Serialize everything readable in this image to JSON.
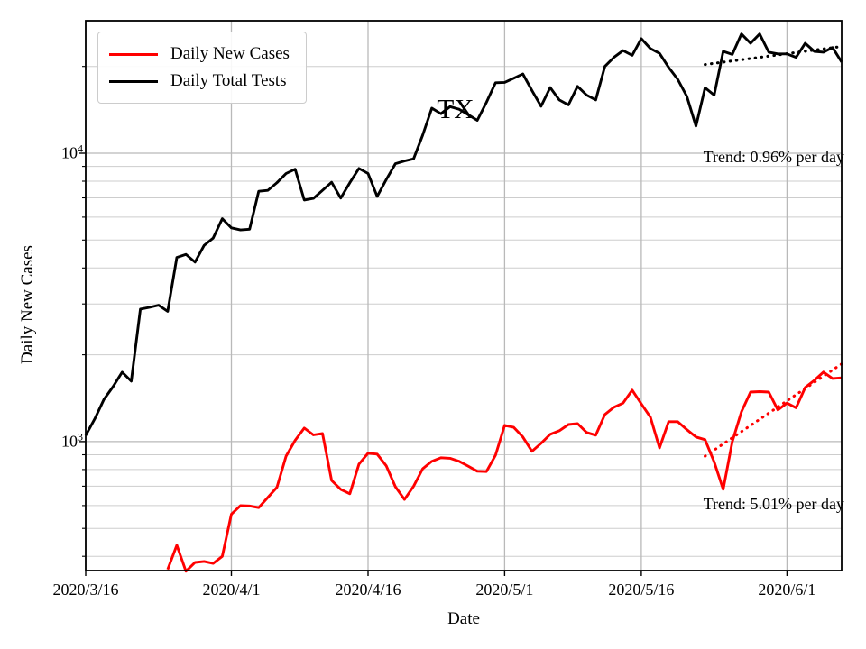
{
  "figure": {
    "title": "TX",
    "xlabel": "Date",
    "ylabel": "Daily New Cases"
  },
  "legend": {
    "items": [
      {
        "label": "Daily New Cases",
        "color": "#ff0000"
      },
      {
        "label": "Daily Total Tests",
        "color": "#000000"
      }
    ]
  },
  "chart_data": {
    "type": "line",
    "title": "TX",
    "xlabel": "Date",
    "ylabel": "Daily New Cases",
    "yscale": "log",
    "ylim": [
      357,
      28800
    ],
    "grid": "both",
    "legend_position": "upper left",
    "x_ticks": [
      {
        "label": "2020/3/16",
        "day": 0
      },
      {
        "label": "2020/4/1",
        "day": 16
      },
      {
        "label": "2020/4/16",
        "day": 31
      },
      {
        "label": "2020/5/1",
        "day": 46
      },
      {
        "label": "2020/5/16",
        "day": 61
      },
      {
        "label": "2020/6/1",
        "day": 77
      }
    ],
    "y_ticks": [
      {
        "base": "10",
        "exp": "3",
        "value": 1000
      },
      {
        "base": "10",
        "exp": "4",
        "value": 10000
      }
    ],
    "x_dates": [
      "2020/3/16",
      "2020/3/17",
      "2020/3/18",
      "2020/3/19",
      "2020/3/20",
      "2020/3/21",
      "2020/3/22",
      "2020/3/23",
      "2020/3/24",
      "2020/3/25",
      "2020/3/26",
      "2020/3/27",
      "2020/3/28",
      "2020/3/29",
      "2020/3/30",
      "2020/3/31",
      "2020/4/1",
      "2020/4/2",
      "2020/4/3",
      "2020/4/4",
      "2020/4/5",
      "2020/4/6",
      "2020/4/7",
      "2020/4/8",
      "2020/4/9",
      "2020/4/10",
      "2020/4/11",
      "2020/4/12",
      "2020/4/13",
      "2020/4/14",
      "2020/4/15",
      "2020/4/16",
      "2020/4/17",
      "2020/4/18",
      "2020/4/19",
      "2020/4/20",
      "2020/4/21",
      "2020/4/22",
      "2020/4/23",
      "2020/4/24",
      "2020/4/25",
      "2020/4/26",
      "2020/4/27",
      "2020/4/28",
      "2020/4/29",
      "2020/4/30",
      "2020/5/1",
      "2020/5/2",
      "2020/5/3",
      "2020/5/4",
      "2020/5/5",
      "2020/5/6",
      "2020/5/7",
      "2020/5/8",
      "2020/5/9",
      "2020/5/10",
      "2020/5/11",
      "2020/5/12",
      "2020/5/13",
      "2020/5/14",
      "2020/5/15",
      "2020/5/16",
      "2020/5/17",
      "2020/5/18",
      "2020/5/19",
      "2020/5/20",
      "2020/5/21",
      "2020/5/22",
      "2020/5/23",
      "2020/5/24",
      "2020/5/25",
      "2020/5/26",
      "2020/5/27",
      "2020/5/28",
      "2020/5/29",
      "2020/5/30",
      "2020/5/31",
      "2020/6/1",
      "2020/6/2",
      "2020/6/3",
      "2020/6/4",
      "2020/6/5",
      "2020/6/6",
      "2020/6/7"
    ],
    "series": [
      {
        "name": "Daily New Cases",
        "color": "#ff0000",
        "values": [
          null,
          null,
          null,
          null,
          null,
          null,
          null,
          null,
          null,
          360,
          437,
          355,
          381,
          384,
          378,
          400,
          560,
          600,
          598,
          590,
          640,
          694,
          890,
          1010,
          1114,
          1055,
          1067,
          733,
          683,
          659,
          835,
          911,
          905,
          824,
          697,
          630,
          700,
          805,
          854,
          879,
          875,
          854,
          822,
          789,
          787,
          897,
          1138,
          1120,
          1037,
          925,
          986,
          1059,
          1090,
          1146,
          1155,
          1075,
          1052,
          1241,
          1315,
          1360,
          1508,
          1352,
          1215,
          951,
          1172,
          1172,
          1100,
          1037,
          1015,
          850,
          683,
          1000,
          1268,
          1485,
          1490,
          1485,
          1287,
          1360,
          1310,
          1540,
          1630,
          1742,
          1655,
          1663
        ]
      },
      {
        "name": "Daily Total Tests",
        "color": "#000000",
        "values": [
          1050,
          1200,
          1400,
          1550,
          1740,
          1620,
          2880,
          2920,
          2970,
          2830,
          4350,
          4460,
          4190,
          4790,
          5080,
          5930,
          5510,
          5420,
          5450,
          7380,
          7430,
          7900,
          8500,
          8800,
          6880,
          6970,
          7430,
          7930,
          6990,
          7900,
          8850,
          8500,
          7080,
          8100,
          9200,
          9400,
          9560,
          11560,
          14330,
          13700,
          14500,
          14200,
          13600,
          13000,
          15000,
          17550,
          17600,
          18200,
          18840,
          16500,
          14550,
          16900,
          15300,
          14700,
          17050,
          15900,
          15300,
          20000,
          21500,
          22700,
          21850,
          24950,
          23050,
          22200,
          19850,
          18040,
          15740,
          12420,
          16860,
          15900,
          22550,
          22000,
          25900,
          24050,
          25900,
          22400,
          22100,
          22100,
          21500,
          24050,
          22550,
          22400,
          23250,
          20700
        ]
      }
    ],
    "trends": [
      {
        "series": "Daily Total Tests",
        "label": "Trend: 0.96% per day",
        "rate_pct_per_day": 0.96,
        "start_day": 68,
        "start_value": 20300,
        "end_day": 83,
        "end_value": 23450,
        "color": "#000000"
      },
      {
        "series": "Daily New Cases",
        "label": "Trend: 5.01% per day",
        "rate_pct_per_day": 5.01,
        "start_day": 68,
        "start_value": 890,
        "end_day": 83,
        "end_value": 1860,
        "color": "#ff0000"
      }
    ]
  }
}
